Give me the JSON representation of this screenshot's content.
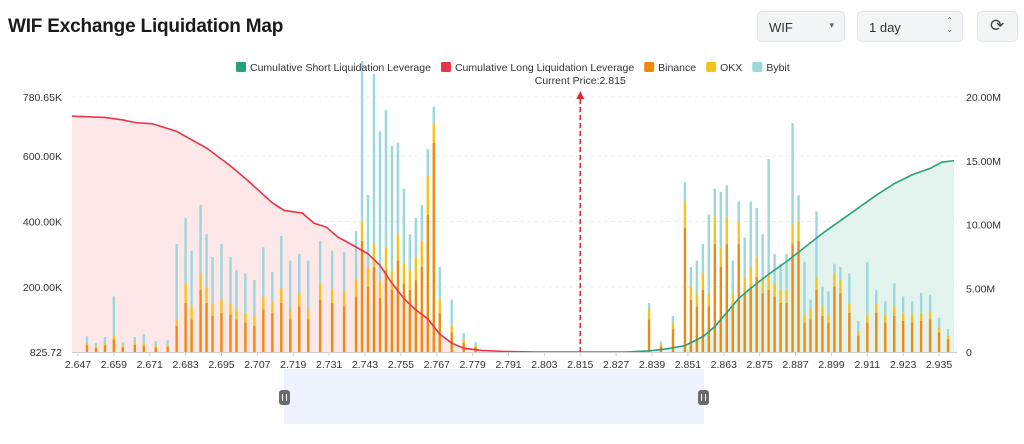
{
  "header": {
    "title": "WIF Exchange Liquidation Map"
  },
  "controls": {
    "coin_select": "WIF",
    "range_select": "1 day",
    "caret_icon": "▾",
    "updown_icon": "⌃⌄",
    "refresh_icon": "⟳"
  },
  "colors": {
    "short_line": "#26a17b",
    "short_fill": "#e3f4ef",
    "long_line": "#e8344a",
    "long_fill": "#fde7e9",
    "binance": "#f0890e",
    "okx": "#f7c31b",
    "bybit": "#9ad8dc",
    "marker": "#e02a33",
    "grid": "#ececec",
    "axis_text": "#333333"
  },
  "chart_data": {
    "type": "bar+area",
    "current_price_label": "Current Price:2.815",
    "current_price": 2.815,
    "legend": [
      {
        "name": "Cumulative Short Liquidation Leverage",
        "color": "#26a17b"
      },
      {
        "name": "Cumulative Long Liquidation Leverage",
        "color": "#e8344a"
      },
      {
        "name": "Binance",
        "color": "#f0890e"
      },
      {
        "name": "OKX",
        "color": "#f7c31b"
      },
      {
        "name": "Bybit",
        "color": "#9ad8dc"
      }
    ],
    "left_axis": {
      "ticks": [
        "825.72",
        "200.00K",
        "400.00K",
        "600.00K",
        "780.65K"
      ],
      "tick_values": [
        825.72,
        200000,
        400000,
        600000,
        780650
      ],
      "range": [
        825.72,
        780650
      ]
    },
    "right_axis": {
      "ticks": [
        "0",
        "5.00M",
        "10.00M",
        "15.00M",
        "20.00M"
      ],
      "tick_values": [
        0,
        5000000,
        10000000,
        15000000,
        20000000
      ],
      "range": [
        0,
        20000000
      ]
    },
    "x_axis": {
      "range": [
        2.645,
        2.941
      ],
      "ticks": [
        "2.647",
        "2.659",
        "2.671",
        "2.683",
        "2.695",
        "2.707",
        "2.719",
        "2.731",
        "2.743",
        "2.755",
        "2.767",
        "2.779",
        "2.791",
        "2.803",
        "2.815",
        "2.827",
        "2.839",
        "2.851",
        "2.863",
        "2.875",
        "2.887",
        "2.899",
        "2.911",
        "2.923",
        "2.935"
      ]
    },
    "cumulative_long": {
      "x": [
        2.645,
        2.656,
        2.662,
        2.666,
        2.672,
        2.68,
        2.69,
        2.698,
        2.704,
        2.712,
        2.716,
        2.722,
        2.726,
        2.73,
        2.734,
        2.738,
        2.744,
        2.748,
        2.752,
        2.756,
        2.76,
        2.764,
        2.768,
        2.772,
        2.776,
        2.782,
        2.79,
        2.8,
        2.815
      ],
      "values": [
        18500000,
        18400000,
        18200000,
        18000000,
        17900000,
        17300000,
        16000000,
        14600000,
        13400000,
        11700000,
        11100000,
        10900000,
        10100000,
        9800000,
        9000000,
        8500000,
        7700000,
        6800000,
        5400000,
        4200000,
        3300000,
        2600000,
        1400000,
        700000,
        300000,
        120000,
        40000,
        0,
        0
      ]
    },
    "cumulative_short": {
      "x": [
        2.815,
        2.83,
        2.838,
        2.844,
        2.85,
        2.856,
        2.86,
        2.864,
        2.868,
        2.872,
        2.878,
        2.884,
        2.89,
        2.896,
        2.902,
        2.908,
        2.914,
        2.92,
        2.926,
        2.932,
        2.936,
        2.94
      ],
      "values": [
        0,
        0,
        80000,
        250000,
        500000,
        1200000,
        2000000,
        3100000,
        4200000,
        5000000,
        6100000,
        7100000,
        8200000,
        9300000,
        10300000,
        11300000,
        12300000,
        13200000,
        13900000,
        14400000,
        14900000,
        15000000
      ]
    },
    "bars": {
      "price": [
        2.65,
        2.653,
        2.656,
        2.659,
        2.662,
        2.666,
        2.669,
        2.673,
        2.677,
        2.68,
        2.683,
        2.685,
        2.688,
        2.69,
        2.692,
        2.695,
        2.698,
        2.7,
        2.703,
        2.706,
        2.709,
        2.712,
        2.715,
        2.718,
        2.721,
        2.724,
        2.728,
        2.732,
        2.736,
        2.74,
        2.742,
        2.744,
        2.746,
        2.748,
        2.75,
        2.752,
        2.754,
        2.756,
        2.758,
        2.76,
        2.762,
        2.764,
        2.766,
        2.768,
        2.772,
        2.776,
        2.78,
        2.838,
        2.842,
        2.846,
        2.85,
        2.852,
        2.854,
        2.856,
        2.858,
        2.86,
        2.862,
        2.864,
        2.866,
        2.868,
        2.87,
        2.872,
        2.874,
        2.876,
        2.878,
        2.88,
        2.882,
        2.884,
        2.886,
        2.888,
        2.89,
        2.892,
        2.894,
        2.896,
        2.898,
        2.9,
        2.902,
        2.905,
        2.908,
        2.911,
        2.914,
        2.917,
        2.92,
        2.923,
        2.926,
        2.929,
        2.932,
        2.935,
        2.938
      ],
      "binance": [
        20000,
        12000,
        20000,
        38000,
        14000,
        22000,
        18000,
        15000,
        16000,
        80000,
        150000,
        100000,
        190000,
        150000,
        110000,
        120000,
        115000,
        100000,
        90000,
        80000,
        130000,
        120000,
        150000,
        100000,
        140000,
        100000,
        160000,
        150000,
        140000,
        170000,
        340000,
        200000,
        260000,
        165000,
        250000,
        190000,
        280000,
        210000,
        190000,
        220000,
        260000,
        420000,
        640000,
        120000,
        60000,
        28000,
        15000,
        100000,
        18000,
        70000,
        380000,
        160000,
        140000,
        190000,
        140000,
        330000,
        260000,
        330000,
        140000,
        330000,
        180000,
        200000,
        230000,
        180000,
        190000,
        170000,
        150000,
        150000,
        330000,
        340000,
        90000,
        100000,
        190000,
        110000,
        90000,
        200000,
        180000,
        120000,
        50000,
        90000,
        120000,
        90000,
        110000,
        95000,
        90000,
        95000,
        100000,
        60000,
        40000
      ],
      "okx": [
        8000,
        5000,
        8000,
        12000,
        6000,
        8000,
        7000,
        6000,
        6000,
        20000,
        60000,
        40000,
        50000,
        50000,
        40000,
        40000,
        35000,
        30000,
        30000,
        30000,
        40000,
        35000,
        45000,
        30000,
        40000,
        30000,
        50000,
        40000,
        45000,
        50000,
        60000,
        60000,
        70000,
        50000,
        70000,
        60000,
        80000,
        60000,
        60000,
        70000,
        80000,
        120000,
        60000,
        40000,
        20000,
        10000,
        5000,
        30000,
        6000,
        20000,
        80000,
        40000,
        40000,
        50000,
        40000,
        80000,
        60000,
        80000,
        40000,
        70000,
        50000,
        60000,
        60000,
        50000,
        50000,
        40000,
        40000,
        40000,
        60000,
        60000,
        25000,
        30000,
        40000,
        30000,
        25000,
        40000,
        40000,
        30000,
        15000,
        25000,
        30000,
        25000,
        30000,
        25000,
        25000,
        25000,
        25000,
        15000,
        10000
      ],
      "bybit": [
        20000,
        10000,
        18000,
        120000,
        10000,
        16000,
        30000,
        12000,
        14000,
        230000,
        200000,
        170000,
        210000,
        160000,
        140000,
        170000,
        140000,
        120000,
        120000,
        110000,
        150000,
        90000,
        160000,
        150000,
        120000,
        150000,
        130000,
        120000,
        120000,
        150000,
        490000,
        220000,
        520000,
        460000,
        420000,
        380000,
        280000,
        230000,
        110000,
        120000,
        110000,
        80000,
        50000,
        100000,
        80000,
        20000,
        10000,
        20000,
        8000,
        20000,
        60000,
        60000,
        100000,
        90000,
        240000,
        90000,
        170000,
        100000,
        100000,
        60000,
        120000,
        200000,
        150000,
        130000,
        350000,
        90000,
        80000,
        110000,
        310000,
        80000,
        160000,
        30000,
        200000,
        60000,
        70000,
        30000,
        40000,
        90000,
        30000,
        160000,
        40000,
        40000,
        70000,
        50000,
        40000,
        60000,
        50000,
        30000,
        20000
      ]
    }
  }
}
